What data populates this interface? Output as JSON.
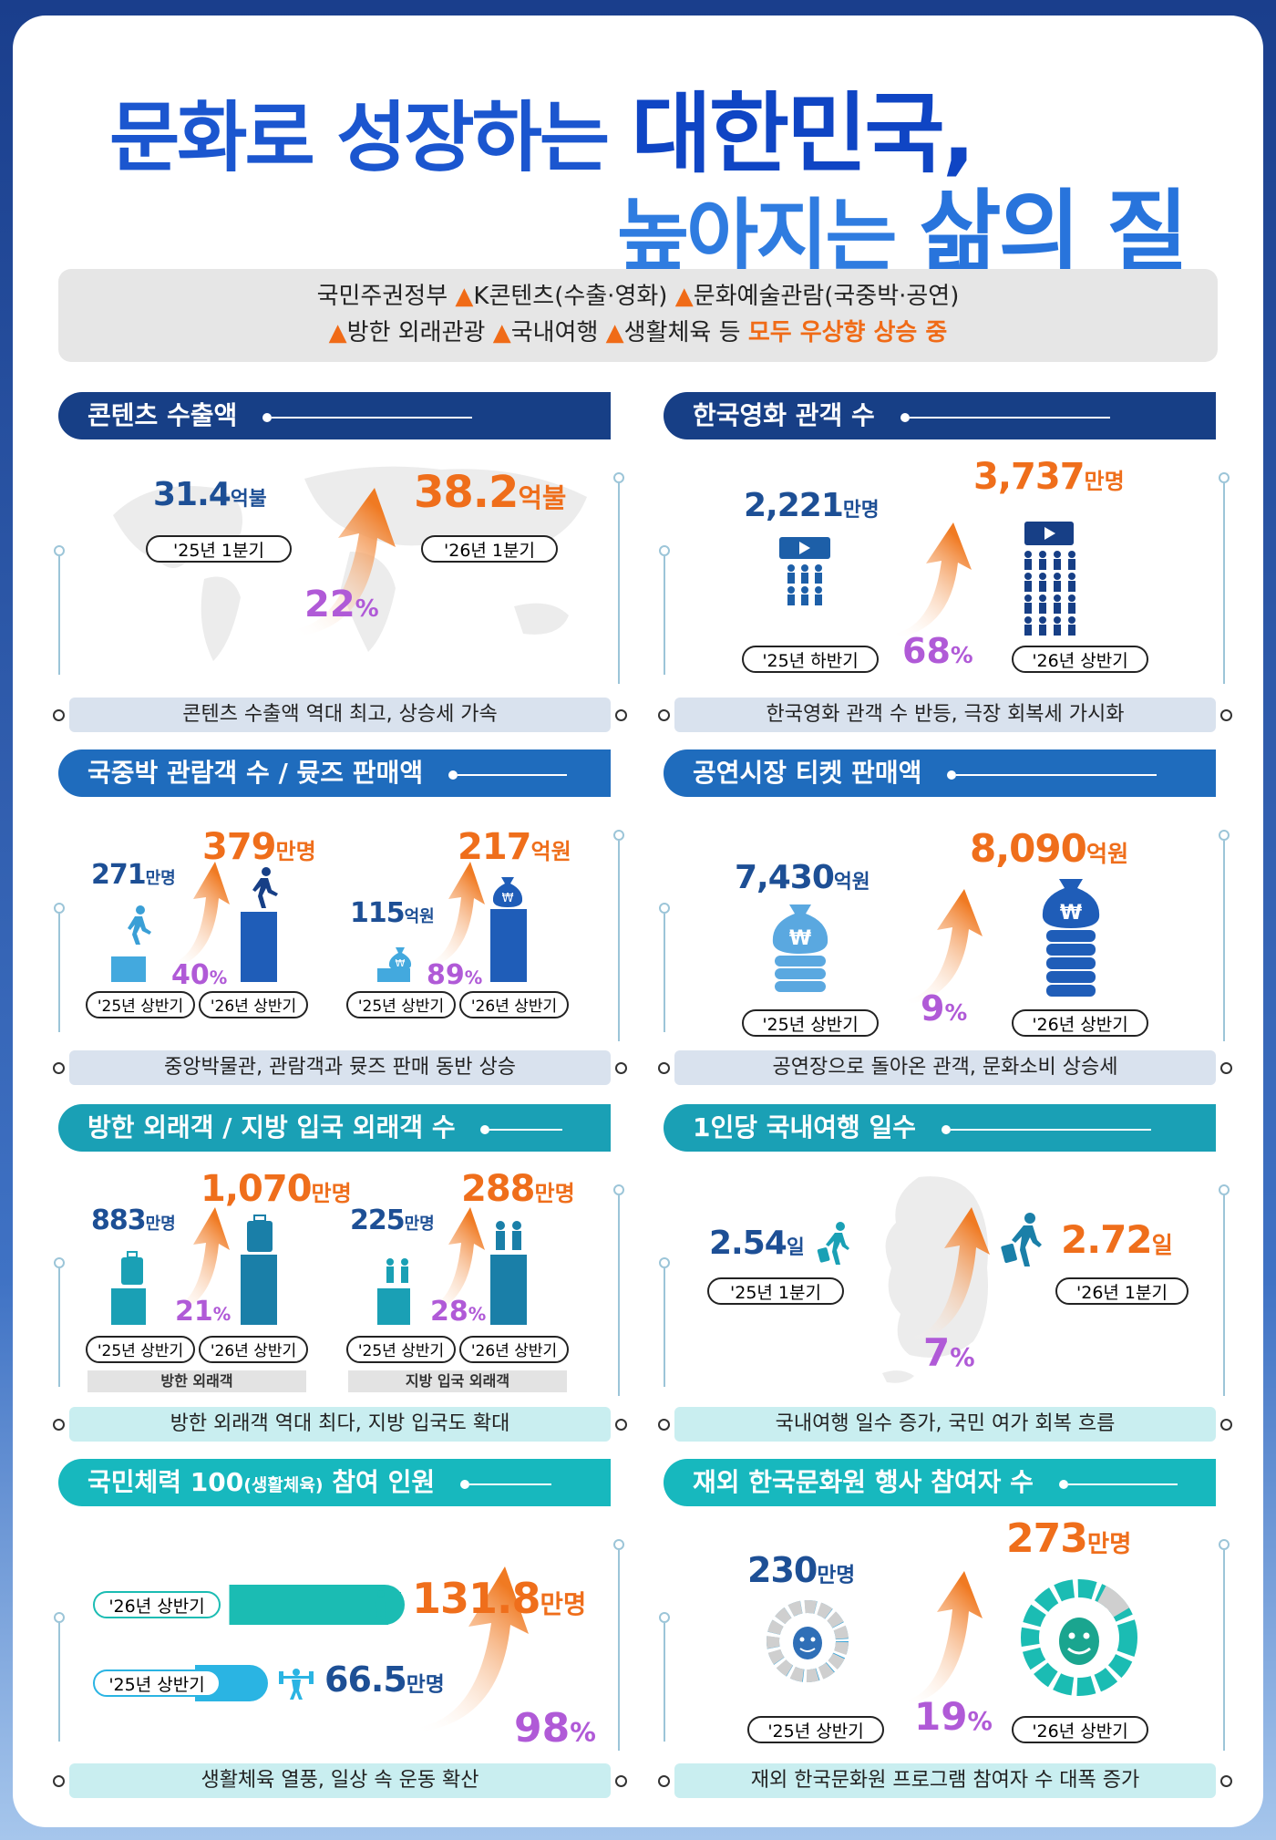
{
  "title": {
    "line1_a": "문화로 성장하는 ",
    "line1_b": "대한민국,",
    "line2_a": "높아지는 ",
    "line2_b": "삶의 질"
  },
  "summary": {
    "line1_a": "국민주권정부 ",
    "line1_b": "K콘텐츠(수출·영화) ",
    "line1_c": "문화예술관람(국중박·공연)",
    "line2_a": "방한 외래관광 ",
    "line2_b": "국내여행 ",
    "line2_c": "생활체육 등 ",
    "line2_hl": "모두 우상향 상승 중",
    "triangle": "▲"
  },
  "panels": {
    "export": {
      "title": "콘텐츠 수출액",
      "before_value": "31.4",
      "before_unit": "억불",
      "before_label": "'25년 1분기",
      "after_value": "38.2",
      "after_unit": "억불",
      "after_label": "'26년 1분기",
      "pct": "22",
      "pct_unit": "%",
      "footer": "콘텐츠 수출액 역대 최고, 상승세 가속"
    },
    "movie": {
      "title": "한국영화 관객 수",
      "before_value": "2,221",
      "before_unit": "만명",
      "before_label": "'25년 하반기",
      "after_value": "3,737",
      "after_unit": "만명",
      "after_label": "'26년 상반기",
      "pct": "68",
      "pct_unit": "%",
      "footer": "한국영화 관객 수 반등, 극장 회복세 가시화"
    },
    "museum": {
      "title": "국중박 관람객 수 / 뮷즈 판매액",
      "a_before": "271",
      "a_before_unit": "만명",
      "a_after": "379",
      "a_after_unit": "만명",
      "a_pct": "40",
      "b_before": "115",
      "b_before_unit": "억원",
      "b_after": "217",
      "b_after_unit": "억원",
      "b_pct": "89",
      "pct_unit": "%",
      "label_before": "'25년 상반기",
      "label_after": "'26년 상반기",
      "footer": "중앙박물관, 관람객과 뮷즈 판매 동반 상승"
    },
    "ticket": {
      "title": "공연시장 티켓 판매액",
      "before_value": "7,430",
      "before_unit": "억원",
      "before_label": "'25년 상반기",
      "after_value": "8,090",
      "after_unit": "억원",
      "after_label": "'26년 상반기",
      "pct": "9",
      "pct_unit": "%",
      "won": "₩",
      "footer": "공연장으로 돌아온 관객, 문화소비 상승세"
    },
    "visitors": {
      "title": "방한 외래객 / 지방 입국 외래객 수",
      "a_before": "883",
      "a_before_unit": "만명",
      "a_after": "1,070",
      "a_after_unit": "만명",
      "a_pct": "21",
      "b_before": "225",
      "b_before_unit": "만명",
      "b_after": "288",
      "b_after_unit": "만명",
      "b_pct": "28",
      "pct_unit": "%",
      "label_before": "'25년 상반기",
      "label_after": "'26년 상반기",
      "a_caption": "방한 외래객",
      "b_caption": "지방 입국 외래객",
      "footer": "방한 외래객 역대 최다, 지방 입국도 확대"
    },
    "travel": {
      "title": "1인당 국내여행 일수",
      "before_value": "2.54",
      "before_unit": "일",
      "before_label": "'25년 1분기",
      "after_value": "2.72",
      "after_unit": "일",
      "after_label": "'26년 1분기",
      "pct": "7",
      "pct_unit": "%",
      "footer": "국내여행 일수 증가, 국민 여가 회복 흐름"
    },
    "sports": {
      "title_a": "국민체력 100",
      "title_b": "(생활체육)",
      "title_c": " 참여 인원",
      "after_label": "'26년 상반기",
      "after_value": "131.8",
      "after_unit": "만명",
      "before_label": "'25년 상반기",
      "before_value": "66.5",
      "before_unit": "만명",
      "pct": "98",
      "pct_unit": "%",
      "footer": "생활체육 열풍, 일상 속 운동 확산"
    },
    "culture_center": {
      "title": "재외 한국문화원 행사 참여자 수",
      "before_value": "230",
      "before_unit": "만명",
      "before_label": "'25년 상반기",
      "after_value": "273",
      "after_unit": "만명",
      "after_label": "'26년 상반기",
      "pct": "19",
      "pct_unit": "%",
      "footer": "재외 한국문화원 프로그램 참여자 수 대폭 증가"
    }
  },
  "colors": {
    "navy": "#173f86",
    "blue": "#1f6cbd",
    "teal": "#1aa0b5",
    "cyan": "#17b8be",
    "orange": "#ef6e1b",
    "purple": "#b05ad7"
  }
}
